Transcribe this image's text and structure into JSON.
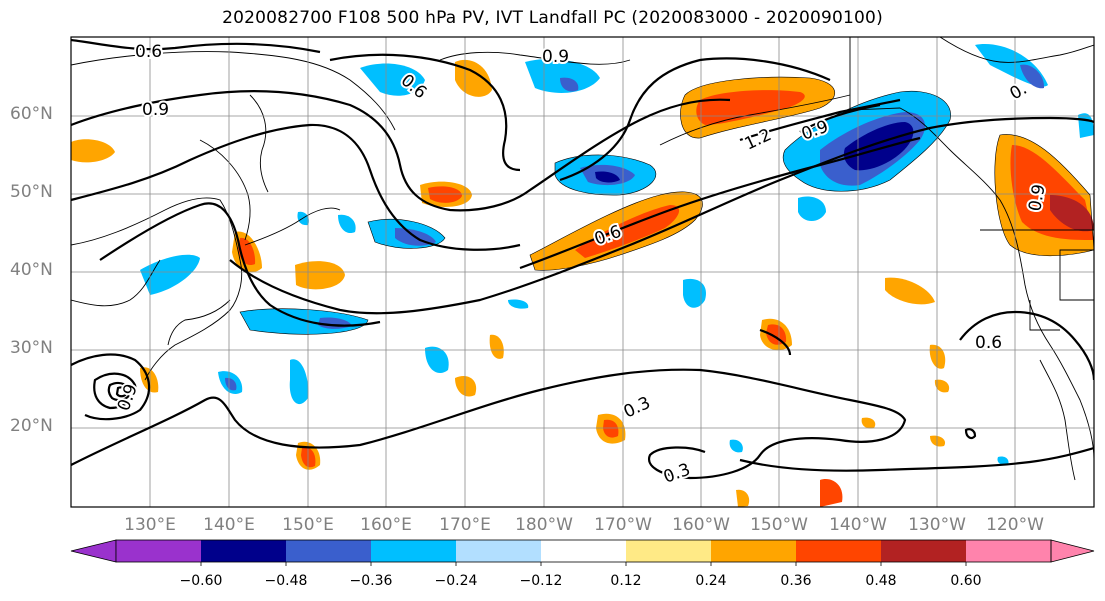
{
  "title": "2020082700 F108 500 hPa PV, IVT Landfall PC (2020083000 - 2020090100)",
  "latitude_labels": [
    "60°N",
    "50°N",
    "40°N",
    "30°N",
    "20°N"
  ],
  "longitude_labels": [
    "130°E",
    "140°E",
    "150°E",
    "160°E",
    "170°E",
    "180°W",
    "170°W",
    "160°W",
    "150°W",
    "140°W",
    "130°W",
    "120°W"
  ],
  "contour_labels": [
    {
      "text": "0.6"
    },
    {
      "text": "0.9"
    },
    {
      "text": "0.6"
    },
    {
      "text": "0.9"
    },
    {
      "text": "1.2"
    },
    {
      "text": "0.9"
    },
    {
      "text": "0.9"
    },
    {
      "text": "0.6"
    },
    {
      "text": "0.6"
    },
    {
      "text": "0.3"
    },
    {
      "text": "0.3"
    },
    {
      "text": "0.9"
    },
    {
      "text": "0."
    }
  ],
  "colorbar": {
    "ticks": [
      "−0.60",
      "−0.48",
      "−0.36",
      "−0.24",
      "−0.12",
      "0.12",
      "0.24",
      "0.36",
      "0.48",
      "0.60"
    ],
    "colors": [
      "#9a32cd",
      "#00008b",
      "#3a5fcd",
      "#00bfff",
      "#b2dfff",
      "#ffffff",
      "#ffea86",
      "#ffa500",
      "#ff4500",
      "#b22222",
      "#ff83ac",
      "#ff83ac"
    ]
  }
}
